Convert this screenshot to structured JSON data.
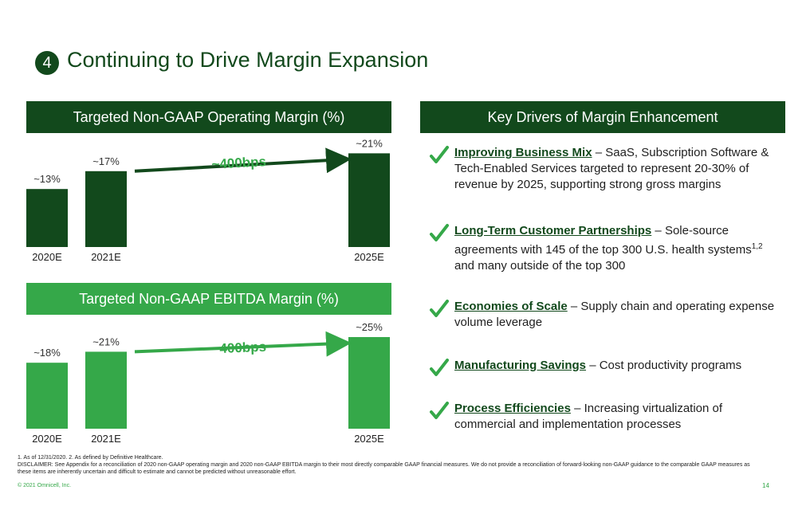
{
  "title": {
    "badge": "4",
    "text": "Continuing to Drive Margin Expansion"
  },
  "operating_header": "Targeted Non-GAAP Operating Margin (%)",
  "ebitda_header": "Targeted Non-GAAP EBITDA Margin (%)",
  "drivers_header": "Key Drivers of Margin Enhancement",
  "colors": {
    "dark_green": "#12491c",
    "light_green": "#35a849"
  },
  "chart_data": [
    {
      "type": "bar",
      "title": "Targeted Non-GAAP Operating Margin (%)",
      "categories": [
        "2020E",
        "2021E",
        "2025E"
      ],
      "values": [
        13,
        17,
        21
      ],
      "data_labels": [
        "~13%",
        "~17%",
        "~21%"
      ],
      "annotation": "~400bps",
      "color": "#12491c"
    },
    {
      "type": "bar",
      "title": "Targeted Non-GAAP EBITDA Margin (%)",
      "categories": [
        "2020E",
        "2021E",
        "2025E"
      ],
      "values": [
        18,
        21,
        25
      ],
      "data_labels": [
        "~18%",
        "~21%",
        "~25%"
      ],
      "annotation": "~400bps",
      "color": "#35a849"
    }
  ],
  "drivers": [
    {
      "head": "Improving Business Mix",
      "text": " – SaaS, Subscription Software & Tech-Enabled Services targeted to represent 20-30% of revenue by 2025, supporting strong gross margins"
    },
    {
      "head": "Long-Term Customer Partnerships",
      "text": " – Sole-source agreements with 145 of the top 300 U.S. health systems",
      "sup": "1,2",
      "text2": " and many outside of the top 300"
    },
    {
      "head": "Economies of Scale",
      "text": " – Supply chain and operating expense volume leverage"
    },
    {
      "head": "Manufacturing Savings",
      "text": " – Cost productivity programs"
    },
    {
      "head": "Process Efficiencies",
      "text": " – Increasing virtualization of commercial and implementation processes"
    }
  ],
  "footnotes": {
    "line1": "1.  As of 12/31/2020.     2.  As defined by Definitive Healthcare.",
    "disclaimer": "DISCLAIMER: See Appendix for a reconciliation of 2020 non-GAAP operating margin and 2020 non-GAAP EBITDA margin to their most directly comparable GAAP financial measures. We do not provide a reconciliation of forward-looking non-GAAP guidance to the comparable GAAP measures as these items are inherently uncertain and difficult to estimate and cannot be predicted without unreasonable effort.",
    "copyright": "© 2021 Omnicell, Inc.",
    "page": "14"
  }
}
